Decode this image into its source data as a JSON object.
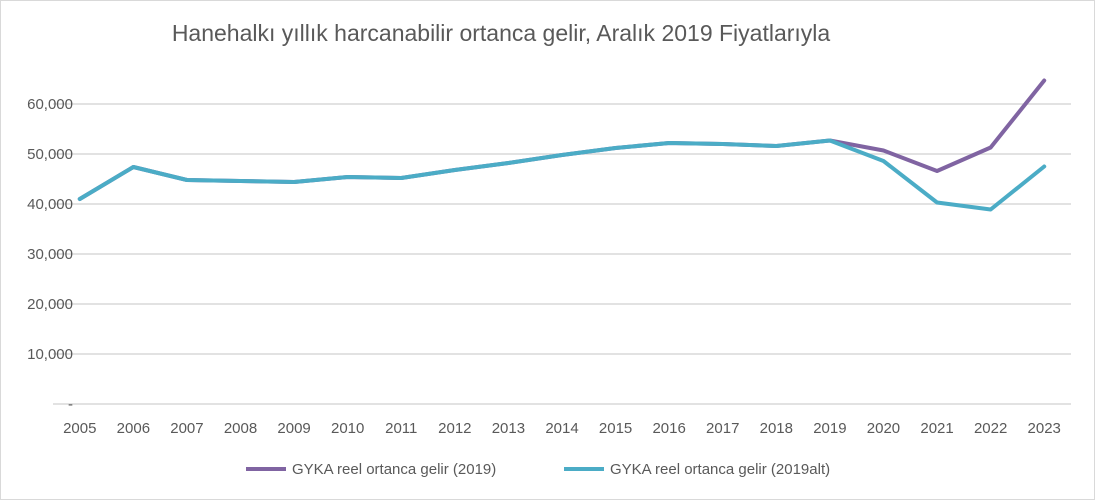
{
  "chart_data": {
    "type": "line",
    "title": "Hanehalkı yıllık harcanabilir ortanca gelir, Aralık 2019 Fiyatlarıyla",
    "xlabel": "",
    "ylabel": "",
    "ylim": [
      0,
      70000
    ],
    "grid": true,
    "legend_position": "bottom",
    "categories": [
      "2005",
      "2006",
      "2007",
      "2008",
      "2009",
      "2010",
      "2011",
      "2012",
      "2013",
      "2014",
      "2015",
      "2016",
      "2017",
      "2018",
      "2019",
      "2020",
      "2021",
      "2022",
      "2023"
    ],
    "y_ticks": [
      0,
      10000,
      20000,
      30000,
      40000,
      50000,
      60000
    ],
    "y_tick_labels": [
      "-",
      "10,000",
      "20,000",
      "30,000",
      "40,000",
      "50,000",
      "60,000"
    ],
    "series": [
      {
        "name": "GYKA reel ortanca gelir (2019)",
        "color": "#8064a2",
        "values": [
          41000,
          47400,
          44800,
          44600,
          44400,
          45400,
          45200,
          46800,
          48200,
          49800,
          51200,
          52200,
          52000,
          51600,
          52700,
          50700,
          46600,
          51300,
          64700
        ]
      },
      {
        "name": "GYKA reel ortanca gelir (2019alt)",
        "color": "#4bacc6",
        "values": [
          41000,
          47400,
          44800,
          44600,
          44400,
          45400,
          45200,
          46800,
          48200,
          49800,
          51200,
          52200,
          52000,
          51600,
          52700,
          48600,
          40300,
          38900,
          47500
        ]
      }
    ]
  }
}
